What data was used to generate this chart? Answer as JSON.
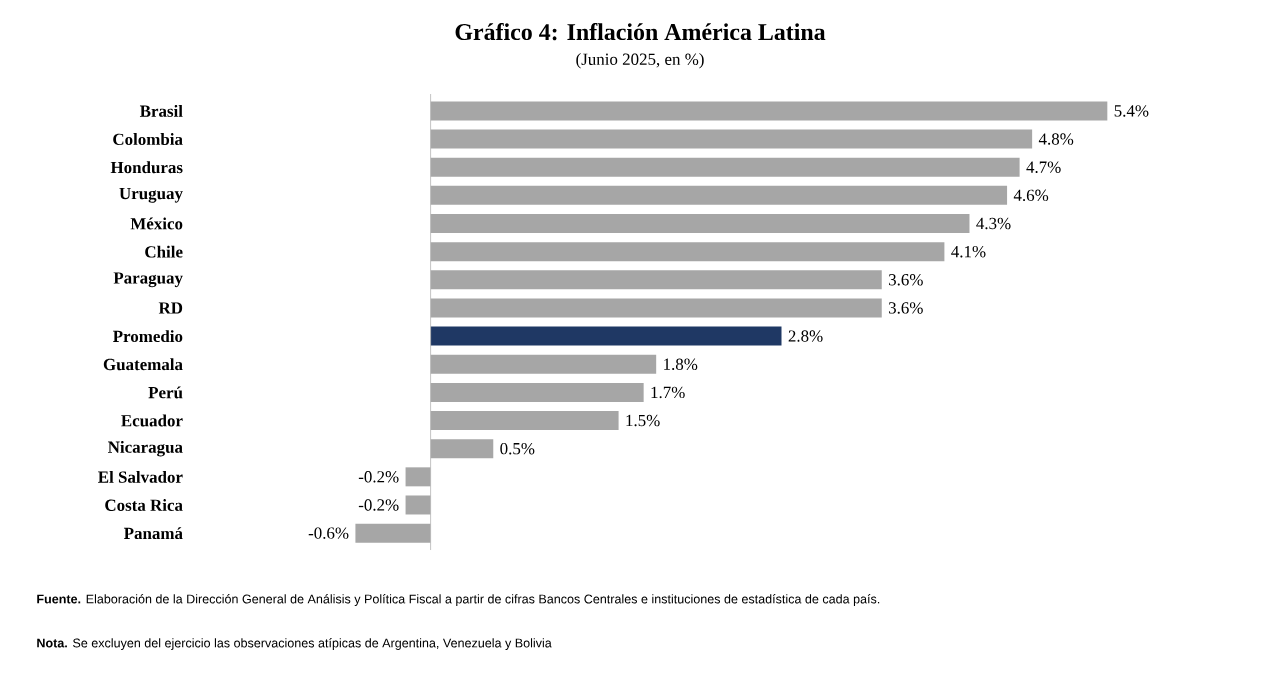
{
  "chart_data": {
    "type": "bar",
    "orientation": "horizontal",
    "title": "Gráfico 4: Inflación América Latina",
    "subtitle": "(Junio 2025, en %)",
    "categories": [
      "Brasil",
      "Colombia",
      "Honduras",
      "Uruguay",
      "México",
      "Chile",
      "Paraguay",
      "RD",
      "Promedio",
      "Guatemala",
      "Perú",
      "Ecuador",
      "Nicaragua",
      "El Salvador",
      "Costa Rica",
      "Panamá"
    ],
    "values": [
      5.4,
      4.8,
      4.7,
      4.6,
      4.3,
      4.1,
      3.6,
      3.6,
      2.8,
      1.8,
      1.7,
      1.5,
      0.5,
      -0.2,
      -0.2,
      -0.6
    ],
    "value_labels": [
      "5.4%",
      "4.8%",
      "4.7%",
      "4.6%",
      "4.3%",
      "4.1%",
      "3.6%",
      "3.6%",
      "2.8%",
      "1.8%",
      "1.7%",
      "1.5%",
      "0.5%",
      "-0.2%",
      "-0.2%",
      "-0.6%"
    ],
    "colors": [
      "#a6a6a6",
      "#a6a6a6",
      "#a6a6a6",
      "#a6a6a6",
      "#a6a6a6",
      "#a6a6a6",
      "#a6a6a6",
      "#a6a6a6",
      "#1f3864",
      "#a6a6a6",
      "#a6a6a6",
      "#a6a6a6",
      "#a6a6a6",
      "#a6a6a6",
      "#a6a6a6",
      "#a6a6a6"
    ],
    "annotations": [
      "**Fuente.** Elaboración de la Dirección General de Análisis y Política Fiscal a partir de cifras Bancos Centrales e instituciones de estadística de cada país.",
      "**Nota.** Se excluyen del ejercicio las observaciones atípicas de Argentina, Venezuela y Bolivia"
    ]
  }
}
